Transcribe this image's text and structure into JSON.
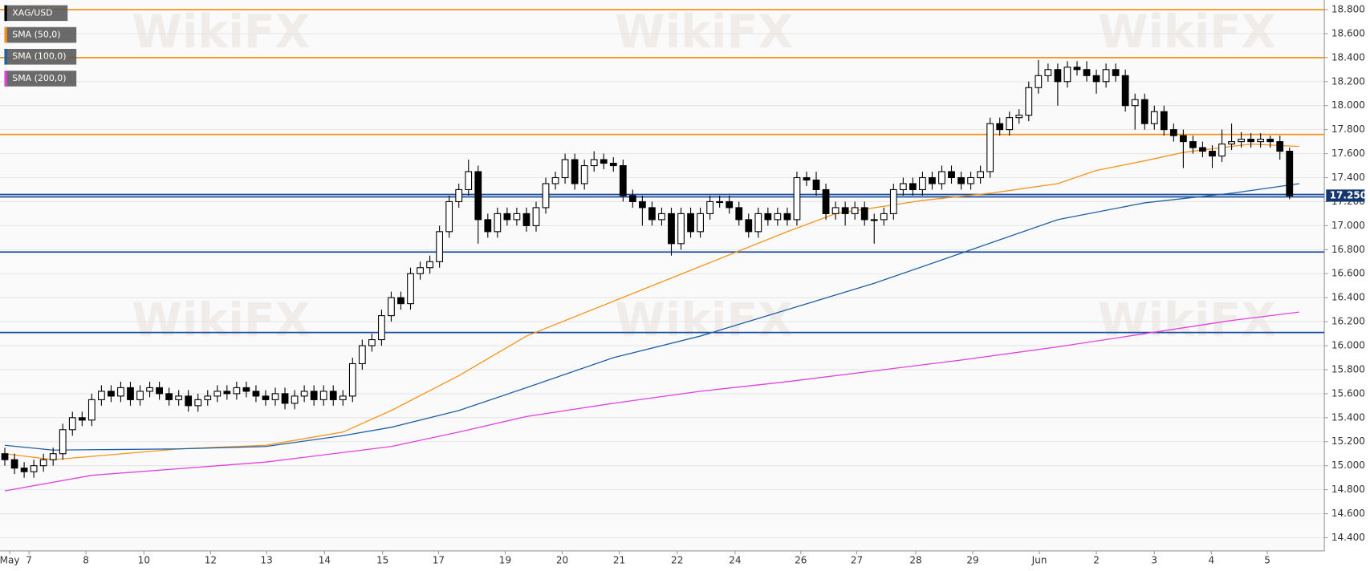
{
  "chart_data": {
    "type": "candlestick",
    "watermark": "WikiFX",
    "name": "XAG/USD",
    "color": "#000000",
    "open": [
      15.1,
      15.05,
      14.98,
      14.95,
      15.0,
      15.05,
      15.1,
      15.3,
      15.4,
      15.38,
      15.55,
      15.62,
      15.58,
      15.65,
      15.55,
      15.62,
      15.65,
      15.6,
      15.55,
      15.58,
      15.5,
      15.55,
      15.58,
      15.62,
      15.6,
      15.65,
      15.62,
      15.58,
      15.55,
      15.6,
      15.52,
      15.58,
      15.62,
      15.55,
      15.62,
      15.55,
      15.58,
      15.85,
      16.0,
      16.05,
      16.25,
      16.4,
      16.35,
      16.6,
      16.65,
      16.7,
      16.95,
      17.2,
      17.3,
      17.45,
      17.05,
      16.95,
      17.1,
      17.05,
      17.1,
      17.0,
      17.15,
      17.35,
      17.4,
      17.55,
      17.35,
      17.5,
      17.55,
      17.52,
      17.5,
      17.25,
      17.2,
      17.15,
      17.05,
      17.1,
      16.85,
      17.1,
      16.95,
      17.1,
      17.2,
      17.2,
      17.15,
      17.05,
      16.95,
      17.1,
      17.05,
      17.1,
      17.05,
      17.4,
      17.38,
      17.3,
      17.1,
      17.15,
      17.1,
      17.15,
      17.05,
      17.05,
      17.1,
      17.3,
      17.35,
      17.3,
      17.4,
      17.35,
      17.45,
      17.4,
      17.35,
      17.4,
      17.45,
      17.85,
      17.8,
      17.9,
      17.92,
      18.15,
      18.25,
      18.3,
      18.2,
      18.32,
      18.3,
      18.25,
      18.2,
      18.3,
      18.25,
      18.0,
      18.05,
      17.85,
      17.95,
      17.8,
      17.75,
      17.7,
      17.65,
      17.62,
      17.58,
      17.68,
      17.7,
      17.72,
      17.7,
      17.72,
      17.7,
      17.62
    ],
    "high": [
      15.15,
      15.1,
      15.03,
      15.05,
      15.1,
      15.15,
      15.35,
      15.45,
      15.45,
      15.6,
      15.67,
      15.67,
      15.7,
      15.7,
      15.67,
      15.7,
      15.7,
      15.65,
      15.63,
      15.63,
      15.6,
      15.63,
      15.67,
      15.67,
      15.7,
      15.7,
      15.67,
      15.63,
      15.65,
      15.65,
      15.63,
      15.67,
      15.67,
      15.67,
      15.67,
      15.63,
      15.9,
      16.05,
      16.1,
      16.3,
      16.45,
      16.45,
      16.65,
      16.7,
      16.75,
      17.0,
      17.25,
      17.35,
      17.55,
      17.5,
      17.1,
      17.15,
      17.15,
      17.15,
      17.15,
      17.2,
      17.4,
      17.45,
      17.6,
      17.6,
      17.55,
      17.62,
      17.6,
      17.57,
      17.55,
      17.3,
      17.25,
      17.2,
      17.15,
      17.15,
      17.15,
      17.15,
      17.15,
      17.25,
      17.25,
      17.25,
      17.2,
      17.1,
      17.15,
      17.15,
      17.15,
      17.15,
      17.45,
      17.45,
      17.45,
      17.35,
      17.2,
      17.2,
      17.2,
      17.2,
      17.1,
      17.15,
      17.35,
      17.4,
      17.4,
      17.45,
      17.45,
      17.5,
      17.5,
      17.45,
      17.45,
      17.5,
      17.9,
      17.9,
      17.95,
      17.97,
      18.2,
      18.38,
      18.35,
      18.35,
      18.37,
      18.37,
      18.37,
      18.3,
      18.35,
      18.35,
      18.3,
      18.1,
      18.1,
      18.0,
      18.0,
      17.85,
      17.8,
      17.75,
      17.7,
      17.67,
      17.8,
      17.85,
      17.78,
      17.77,
      17.77,
      17.75,
      17.75,
      17.65
    ],
    "low": [
      15.0,
      14.93,
      14.9,
      14.9,
      14.95,
      15.0,
      15.05,
      15.25,
      15.33,
      15.33,
      15.5,
      15.53,
      15.53,
      15.5,
      15.5,
      15.57,
      15.55,
      15.5,
      15.5,
      15.45,
      15.45,
      15.5,
      15.53,
      15.55,
      15.55,
      15.57,
      15.53,
      15.5,
      15.5,
      15.47,
      15.47,
      15.53,
      15.5,
      15.5,
      15.5,
      15.5,
      15.53,
      15.8,
      15.95,
      16.0,
      16.2,
      16.3,
      16.3,
      16.55,
      16.6,
      16.65,
      16.9,
      17.15,
      17.25,
      16.85,
      16.9,
      16.9,
      17.0,
      17.0,
      16.95,
      16.95,
      17.1,
      17.3,
      17.35,
      17.3,
      17.3,
      17.45,
      17.47,
      17.45,
      17.2,
      17.15,
      17.0,
      17.0,
      17.0,
      16.75,
      16.8,
      16.9,
      16.9,
      17.05,
      17.15,
      17.1,
      17.0,
      16.9,
      16.9,
      17.0,
      17.0,
      17.0,
      17.0,
      17.33,
      17.25,
      17.05,
      17.05,
      17.0,
      17.05,
      17.0,
      16.85,
      17.0,
      17.05,
      17.25,
      17.25,
      17.25,
      17.3,
      17.3,
      17.35,
      17.3,
      17.3,
      17.35,
      17.4,
      17.75,
      17.75,
      17.85,
      17.87,
      18.1,
      18.2,
      18.0,
      18.15,
      18.25,
      18.2,
      18.1,
      18.15,
      18.2,
      17.95,
      17.8,
      17.8,
      17.8,
      17.75,
      17.7,
      17.48,
      17.6,
      17.57,
      17.48,
      17.53,
      17.63,
      17.65,
      17.65,
      17.65,
      17.65,
      17.55,
      17.22
    ],
    "close": [
      15.05,
      14.98,
      14.95,
      15.0,
      15.05,
      15.1,
      15.3,
      15.4,
      15.38,
      15.55,
      15.62,
      15.58,
      15.65,
      15.55,
      15.62,
      15.65,
      15.6,
      15.55,
      15.58,
      15.5,
      15.55,
      15.58,
      15.62,
      15.6,
      15.65,
      15.62,
      15.58,
      15.55,
      15.6,
      15.52,
      15.58,
      15.62,
      15.55,
      15.62,
      15.55,
      15.58,
      15.85,
      16.0,
      16.05,
      16.25,
      16.4,
      16.35,
      16.6,
      16.65,
      16.7,
      16.95,
      17.2,
      17.3,
      17.45,
      17.05,
      16.95,
      17.1,
      17.05,
      17.1,
      17.0,
      17.15,
      17.35,
      17.4,
      17.55,
      17.35,
      17.5,
      17.55,
      17.52,
      17.5,
      17.25,
      17.2,
      17.15,
      17.05,
      17.1,
      16.85,
      17.1,
      16.95,
      17.1,
      17.2,
      17.2,
      17.15,
      17.05,
      16.95,
      17.1,
      17.05,
      17.1,
      17.05,
      17.4,
      17.38,
      17.3,
      17.1,
      17.15,
      17.1,
      17.15,
      17.05,
      17.05,
      17.1,
      17.3,
      17.35,
      17.3,
      17.4,
      17.35,
      17.45,
      17.4,
      17.35,
      17.4,
      17.45,
      17.85,
      17.8,
      17.9,
      17.92,
      18.15,
      18.25,
      18.3,
      18.2,
      18.32,
      18.3,
      18.25,
      18.2,
      18.3,
      18.25,
      18.0,
      18.05,
      17.85,
      17.95,
      17.8,
      17.75,
      17.7,
      17.65,
      17.62,
      17.58,
      17.68,
      17.7,
      17.72,
      17.7,
      17.72,
      17.7,
      17.62,
      17.25
    ],
    "series": [
      {
        "name": "SMA (50,0)",
        "color": "#f7931a",
        "x": [
          0,
          5,
          18,
          27,
          35,
          40,
          47,
          54,
          63,
          72,
          81,
          86,
          95,
          102,
          109,
          113,
          118,
          122,
          129,
          134
        ],
        "values": [
          15.1,
          15.05,
          15.14,
          15.17,
          15.28,
          15.46,
          15.75,
          16.08,
          16.37,
          16.66,
          16.95,
          17.1,
          17.21,
          17.27,
          17.35,
          17.46,
          17.54,
          17.61,
          17.68,
          17.66
        ]
      },
      {
        "name": "SMA (100,0)",
        "color": "#1e5fa8",
        "x": [
          0,
          5,
          18,
          27,
          35,
          40,
          47,
          54,
          63,
          72,
          81,
          90,
          99,
          109,
          118,
          127,
          134
        ],
        "values": [
          15.17,
          15.13,
          15.14,
          15.16,
          15.25,
          15.32,
          15.46,
          15.65,
          15.9,
          16.08,
          16.3,
          16.52,
          16.77,
          17.05,
          17.19,
          17.27,
          17.35
        ]
      },
      {
        "name": "SMA (200,0)",
        "color": "#e040e0",
        "x": [
          0,
          9,
          27,
          40,
          47,
          54,
          63,
          72,
          81,
          90,
          99,
          109,
          118,
          127,
          134
        ],
        "values": [
          14.79,
          14.92,
          15.03,
          15.16,
          15.28,
          15.41,
          15.52,
          15.62,
          15.7,
          15.79,
          15.88,
          15.99,
          16.1,
          16.21,
          16.28
        ]
      }
    ],
    "levels": [
      {
        "value": 18.8,
        "color": "#f7931a"
      },
      {
        "value": 18.4,
        "color": "#f7931a"
      },
      {
        "value": 17.76,
        "color": "#f7931a"
      },
      {
        "value": 17.26,
        "color": "#1e4f9a"
      },
      {
        "value": 17.24,
        "color": "#1e4f9a"
      },
      {
        "value": 16.78,
        "color": "#1e4f9a"
      },
      {
        "value": 16.11,
        "color": "#1e4f9a"
      }
    ],
    "price_label": {
      "value": 17.25,
      "label": "17.250",
      "color": "#14386e"
    },
    "xlim": [
      -0.5,
      136.6
    ],
    "ylim": [
      14.29,
      18.88
    ],
    "xticks": [
      {
        "value": 0.5,
        "label": "May"
      },
      {
        "value": 2.5,
        "label": "7"
      },
      {
        "value": 8.4,
        "label": "8"
      },
      {
        "value": 14.4,
        "label": "10"
      },
      {
        "value": 21.3,
        "label": "12"
      },
      {
        "value": 27.1,
        "label": "13"
      },
      {
        "value": 33.1,
        "label": "14"
      },
      {
        "value": 39.1,
        "label": "15"
      },
      {
        "value": 44.9,
        "label": "17"
      },
      {
        "value": 51.8,
        "label": "19"
      },
      {
        "value": 57.7,
        "label": "20"
      },
      {
        "value": 63.6,
        "label": "21"
      },
      {
        "value": 69.6,
        "label": "22"
      },
      {
        "value": 75.6,
        "label": "24"
      },
      {
        "value": 82.4,
        "label": "26"
      },
      {
        "value": 88.2,
        "label": "27"
      },
      {
        "value": 94.3,
        "label": "28"
      },
      {
        "value": 100.2,
        "label": "29"
      },
      {
        "value": 107.1,
        "label": "Jun"
      },
      {
        "value": 113,
        "label": "2"
      },
      {
        "value": 119,
        "label": "3"
      },
      {
        "value": 124.9,
        "label": "4"
      },
      {
        "value": 130.7,
        "label": "5"
      }
    ],
    "yticks": [
      {
        "value": 14.4,
        "label": "14.400"
      },
      {
        "value": 14.6,
        "label": "14.600"
      },
      {
        "value": 14.8,
        "label": "14.800"
      },
      {
        "value": 15.0,
        "label": "15.000"
      },
      {
        "value": 15.2,
        "label": "15.200"
      },
      {
        "value": 15.4,
        "label": "15.400"
      },
      {
        "value": 15.6,
        "label": "15.600"
      },
      {
        "value": 15.8,
        "label": "15.800"
      },
      {
        "value": 16.0,
        "label": "16.000"
      },
      {
        "value": 16.2,
        "label": "16.200"
      },
      {
        "value": 16.4,
        "label": "16.400"
      },
      {
        "value": 16.6,
        "label": "16.600"
      },
      {
        "value": 16.8,
        "label": "16.800"
      },
      {
        "value": 17.0,
        "label": "17.000"
      },
      {
        "value": 17.2,
        "label": "17.200"
      },
      {
        "value": 17.4,
        "label": "17.400"
      },
      {
        "value": 17.6,
        "label": "17.600"
      },
      {
        "value": 17.8,
        "label": "17.800"
      },
      {
        "value": 18.0,
        "label": "18.000"
      },
      {
        "value": 18.2,
        "label": "18.200"
      },
      {
        "value": 18.4,
        "label": "18.400"
      },
      {
        "value": 18.6,
        "label": "18.600"
      },
      {
        "value": 18.8,
        "label": "18.800"
      }
    ],
    "grid": true
  }
}
